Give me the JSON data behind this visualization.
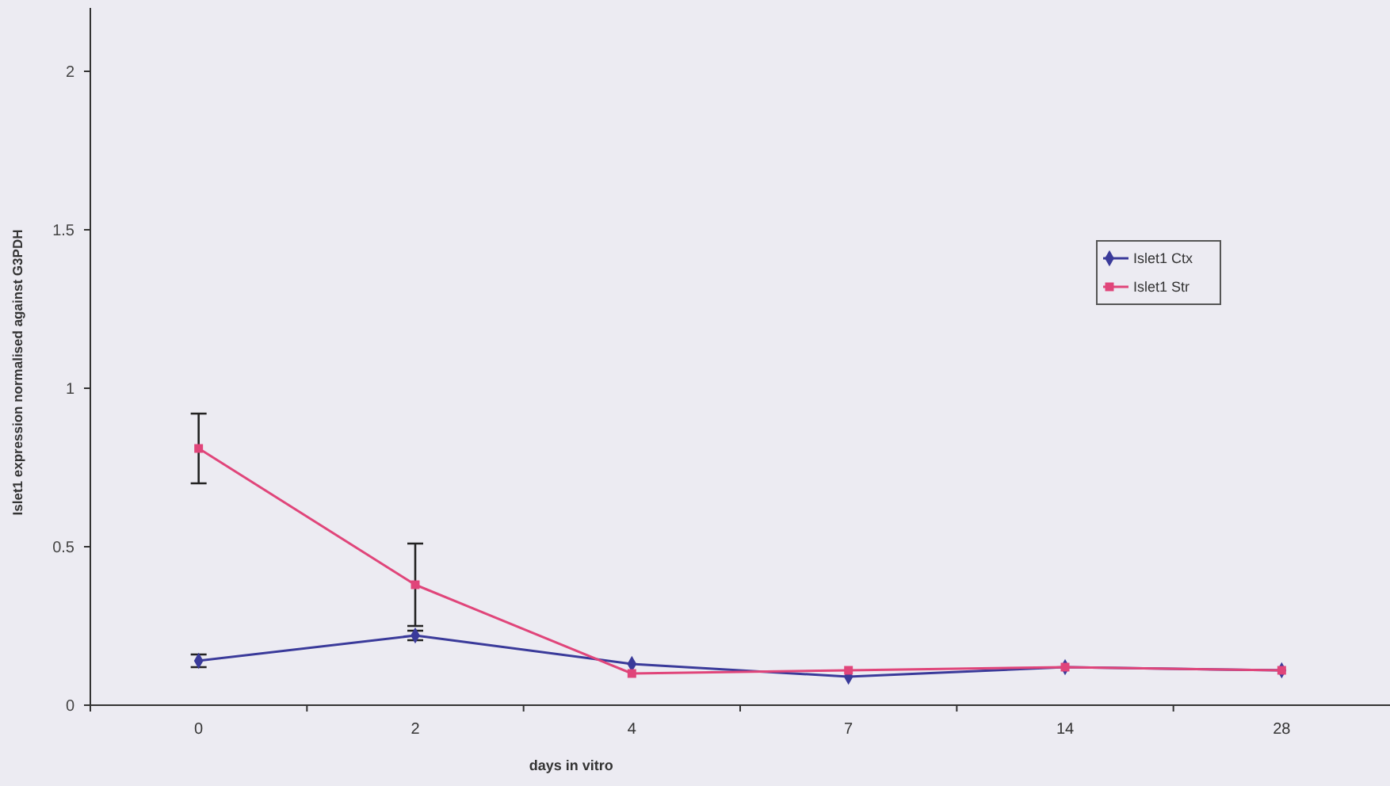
{
  "chart_data": {
    "type": "line",
    "xlabel": "days in vitro",
    "ylabel": "Islet1 expression normalised against G3PDH",
    "categories": [
      "0",
      "2",
      "4",
      "7",
      "14",
      "28"
    ],
    "series": [
      {
        "name": "Islet1 Ctx",
        "color": "#3a3a9a",
        "marker": "diamond",
        "values": [
          0.14,
          0.22,
          0.13,
          0.09,
          0.12,
          0.11
        ],
        "errors": [
          0.02,
          0.015,
          null,
          null,
          null,
          null
        ]
      },
      {
        "name": "Islet1 Str",
        "color": "#e0457a",
        "marker": "square",
        "values": [
          0.81,
          0.38,
          0.1,
          0.11,
          0.12,
          0.11
        ],
        "errors": [
          0.11,
          0.13,
          null,
          null,
          null,
          null
        ]
      }
    ],
    "ylim": [
      0,
      2.2
    ],
    "yticks": [
      0,
      0.5,
      1,
      1.5,
      2
    ],
    "legend": "right",
    "grid": false
  }
}
